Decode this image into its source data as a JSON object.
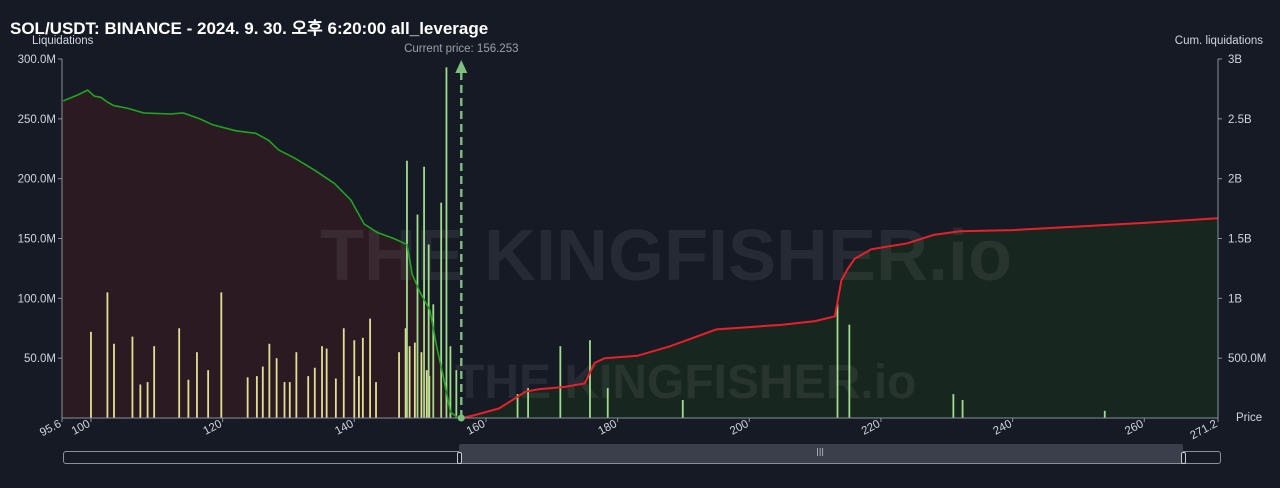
{
  "header": {
    "title": "SOL/USDT: BINANCE - 2024. 9. 30. 오후 6:20:00 all_leverage"
  },
  "chart_data": {
    "type": "bar",
    "left_axis_label": "Liquidations",
    "right_axis_label": "Cum. liquidations",
    "x_axis_label": "Price",
    "current_price_label": "Current price: 156.253",
    "current_price": 156.253,
    "xlim": [
      95.6,
      271.2
    ],
    "ylim_left": [
      0,
      300000000
    ],
    "ylim_right": [
      0,
      3000000000
    ],
    "left_ticks": [
      "50.0M",
      "100.0M",
      "150.0M",
      "200.0M",
      "250.0M",
      "300.0M"
    ],
    "right_ticks": [
      "500.0M",
      "1B",
      "1.5B",
      "2B",
      "2.5B",
      "3B"
    ],
    "x_ticks": [
      "95.6",
      "100",
      "120",
      "140",
      "160",
      "180",
      "200",
      "220",
      "240",
      "260",
      "271.2"
    ],
    "watermark": "THE KINGFISHER.io",
    "colors": {
      "long_bar": "#e3df95",
      "long_bar_faint": "#8c86d6",
      "short_bar": "#9fdc8c",
      "short_bar_faint": "#6f7fc8",
      "cum_long_line": "#1fa51f",
      "cum_long_fill": "#2b1a22",
      "cum_short_line": "#e8202a",
      "cum_short_fill": "#17261f",
      "current_price": "#7fbf7f",
      "background": "#161a25"
    },
    "series_long_bars": [
      {
        "x": 100.0,
        "y": 72000000
      },
      {
        "x": 102.5,
        "y": 105000000
      },
      {
        "x": 103.5,
        "y": 62000000
      },
      {
        "x": 106.3,
        "y": 68000000
      },
      {
        "x": 107.5,
        "y": 28000000
      },
      {
        "x": 108.6,
        "y": 30000000
      },
      {
        "x": 109.6,
        "y": 60000000
      },
      {
        "x": 113.4,
        "y": 75000000
      },
      {
        "x": 114.8,
        "y": 32000000
      },
      {
        "x": 116.1,
        "y": 55000000
      },
      {
        "x": 117.8,
        "y": 40000000
      },
      {
        "x": 119.8,
        "y": 105000000
      },
      {
        "x": 123.8,
        "y": 34000000
      },
      {
        "x": 125.2,
        "y": 35000000
      },
      {
        "x": 126.1,
        "y": 43000000
      },
      {
        "x": 127.1,
        "y": 62000000
      },
      {
        "x": 128.2,
        "y": 50000000
      },
      {
        "x": 129.4,
        "y": 30000000
      },
      {
        "x": 130.2,
        "y": 30000000
      },
      {
        "x": 131.2,
        "y": 55000000
      },
      {
        "x": 133.0,
        "y": 35000000
      },
      {
        "x": 134.0,
        "y": 42000000
      },
      {
        "x": 135.1,
        "y": 60000000
      },
      {
        "x": 135.8,
        "y": 58000000
      },
      {
        "x": 137.2,
        "y": 33000000
      },
      {
        "x": 138.4,
        "y": 75000000
      },
      {
        "x": 140.0,
        "y": 65000000
      },
      {
        "x": 140.7,
        "y": 35000000
      },
      {
        "x": 141.3,
        "y": 67000000
      },
      {
        "x": 142.4,
        "y": 83000000
      },
      {
        "x": 143.3,
        "y": 30000000
      },
      {
        "x": 146.8,
        "y": 55000000
      },
      {
        "x": 147.8,
        "y": 75000000
      },
      {
        "x": 148.4,
        "y": 60000000
      },
      {
        "x": 149.2,
        "y": 63000000
      },
      {
        "x": 150.2,
        "y": 55000000
      },
      {
        "x": 151.0,
        "y": 40000000
      },
      {
        "x": 151.4,
        "y": 35000000
      }
    ],
    "series_short_bars": [
      {
        "x": 148.0,
        "y": 215000000
      },
      {
        "x": 149.6,
        "y": 170000000
      },
      {
        "x": 150.6,
        "y": 210000000
      },
      {
        "x": 151.3,
        "y": 145000000
      },
      {
        "x": 152.0,
        "y": 95000000
      },
      {
        "x": 153.2,
        "y": 180000000
      },
      {
        "x": 154.0,
        "y": 293000000
      },
      {
        "x": 154.6,
        "y": 60000000
      },
      {
        "x": 155.5,
        "y": 40000000
      },
      {
        "x": 164.8,
        "y": 20000000
      },
      {
        "x": 166.4,
        "y": 25000000
      },
      {
        "x": 171.3,
        "y": 60000000
      },
      {
        "x": 175.8,
        "y": 65000000
      },
      {
        "x": 178.5,
        "y": 25000000
      },
      {
        "x": 189.9,
        "y": 15000000
      },
      {
        "x": 213.4,
        "y": 95000000
      },
      {
        "x": 215.2,
        "y": 78000000
      },
      {
        "x": 231.0,
        "y": 20000000
      },
      {
        "x": 232.4,
        "y": 15000000
      },
      {
        "x": 254.0,
        "y": 6000000
      }
    ],
    "series_cum_long": [
      {
        "x": 95.8,
        "y": 2650000000
      },
      {
        "x": 98.0,
        "y": 2700000000
      },
      {
        "x": 99.5,
        "y": 2740000000
      },
      {
        "x": 100.5,
        "y": 2690000000
      },
      {
        "x": 101.5,
        "y": 2680000000
      },
      {
        "x": 102.5,
        "y": 2640000000
      },
      {
        "x": 103.5,
        "y": 2610000000
      },
      {
        "x": 105.5,
        "y": 2590000000
      },
      {
        "x": 108.0,
        "y": 2550000000
      },
      {
        "x": 112.0,
        "y": 2540000000
      },
      {
        "x": 114.0,
        "y": 2550000000
      },
      {
        "x": 116.5,
        "y": 2500000000
      },
      {
        "x": 118.5,
        "y": 2450000000
      },
      {
        "x": 122.0,
        "y": 2400000000
      },
      {
        "x": 125.0,
        "y": 2380000000
      },
      {
        "x": 127.0,
        "y": 2320000000
      },
      {
        "x": 128.5,
        "y": 2240000000
      },
      {
        "x": 131.0,
        "y": 2170000000
      },
      {
        "x": 134.0,
        "y": 2070000000
      },
      {
        "x": 137.0,
        "y": 1960000000
      },
      {
        "x": 139.5,
        "y": 1820000000
      },
      {
        "x": 141.5,
        "y": 1620000000
      },
      {
        "x": 143.5,
        "y": 1550000000
      },
      {
        "x": 146.0,
        "y": 1500000000
      },
      {
        "x": 148.0,
        "y": 1450000000
      },
      {
        "x": 148.8,
        "y": 1200000000
      },
      {
        "x": 150.0,
        "y": 1050000000
      },
      {
        "x": 151.5,
        "y": 900000000
      },
      {
        "x": 152.5,
        "y": 600000000
      },
      {
        "x": 153.5,
        "y": 350000000
      },
      {
        "x": 154.6,
        "y": 50000000
      },
      {
        "x": 155.8,
        "y": 0
      }
    ],
    "series_cum_short": [
      {
        "x": 156.3,
        "y": 0
      },
      {
        "x": 158.0,
        "y": 20000000
      },
      {
        "x": 160.0,
        "y": 50000000
      },
      {
        "x": 162.0,
        "y": 80000000
      },
      {
        "x": 164.0,
        "y": 150000000
      },
      {
        "x": 166.0,
        "y": 220000000
      },
      {
        "x": 168.0,
        "y": 240000000
      },
      {
        "x": 172.0,
        "y": 260000000
      },
      {
        "x": 175.0,
        "y": 290000000
      },
      {
        "x": 176.5,
        "y": 460000000
      },
      {
        "x": 178.0,
        "y": 500000000
      },
      {
        "x": 183.0,
        "y": 520000000
      },
      {
        "x": 188.0,
        "y": 600000000
      },
      {
        "x": 190.0,
        "y": 640000000
      },
      {
        "x": 195.0,
        "y": 740000000
      },
      {
        "x": 200.0,
        "y": 760000000
      },
      {
        "x": 205.0,
        "y": 780000000
      },
      {
        "x": 210.0,
        "y": 810000000
      },
      {
        "x": 213.0,
        "y": 850000000
      },
      {
        "x": 214.0,
        "y": 1150000000
      },
      {
        "x": 215.0,
        "y": 1250000000
      },
      {
        "x": 216.0,
        "y": 1330000000
      },
      {
        "x": 218.5,
        "y": 1410000000
      },
      {
        "x": 224.0,
        "y": 1460000000
      },
      {
        "x": 228.0,
        "y": 1530000000
      },
      {
        "x": 232.0,
        "y": 1560000000
      },
      {
        "x": 240.0,
        "y": 1570000000
      },
      {
        "x": 250.0,
        "y": 1600000000
      },
      {
        "x": 260.0,
        "y": 1630000000
      },
      {
        "x": 271.2,
        "y": 1670000000
      }
    ]
  }
}
